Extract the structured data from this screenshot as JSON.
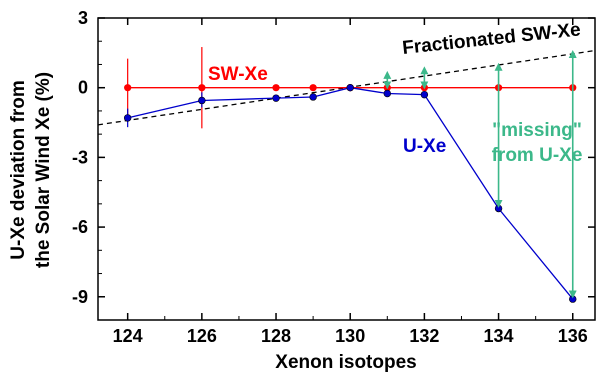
{
  "chart_data": {
    "type": "line",
    "xlabel": "Xenon isotopes",
    "ylabel_lines": [
      "U-Xe deviation from",
      "the Solar Wind Xe (%)"
    ],
    "x_ticks": [
      "124",
      "126",
      "128",
      "130",
      "132",
      "134",
      "136"
    ],
    "y_ticks": [
      "3",
      "0",
      "-3",
      "-6",
      "-9"
    ],
    "xlim": [
      123.2,
      136.6
    ],
    "ylim": [
      -10,
      3
    ],
    "series": [
      {
        "name": "SW-Xe",
        "color": "#ff0000",
        "x": [
          124,
          126,
          128,
          129,
          130,
          131,
          132,
          134,
          136
        ],
        "y": [
          0,
          0,
          0,
          0,
          0,
          0,
          0,
          0,
          0
        ]
      },
      {
        "name": "U-Xe",
        "color": "#0000cc",
        "x": [
          124,
          126,
          128,
          129,
          130,
          131,
          132,
          134,
          136
        ],
        "y": [
          -1.3,
          -0.55,
          -0.45,
          -0.4,
          0.0,
          -0.25,
          -0.3,
          -5.2,
          -9.1
        ]
      }
    ],
    "trend_line": {
      "label": "Fractionated SW-Xe",
      "style": "dashed",
      "color": "#000000",
      "x": [
        123.2,
        136.6
      ],
      "y": [
        -1.6,
        1.6
      ]
    },
    "error_bars": [
      {
        "x": 124,
        "y": 0,
        "err": 1.25
      },
      {
        "x": 126,
        "y": 0,
        "err": 1.75
      }
    ],
    "annotations": {
      "sw_xe": "SW-Xe",
      "u_xe": "U-Xe",
      "missing_line1": "\"missing\"",
      "missing_line2": "from U-Xe",
      "missing_color": "#3cb88a"
    },
    "missing_arrows": [
      {
        "x": 131,
        "y_from": 0.1,
        "y_to": 0.55
      },
      {
        "x": 132,
        "y_from": 0.1,
        "y_to": 0.75
      },
      {
        "x": 134,
        "y_from": -5.0,
        "y_to": 0.9
      },
      {
        "x": 136,
        "y_from": -8.9,
        "y_to": 1.45
      }
    ]
  }
}
